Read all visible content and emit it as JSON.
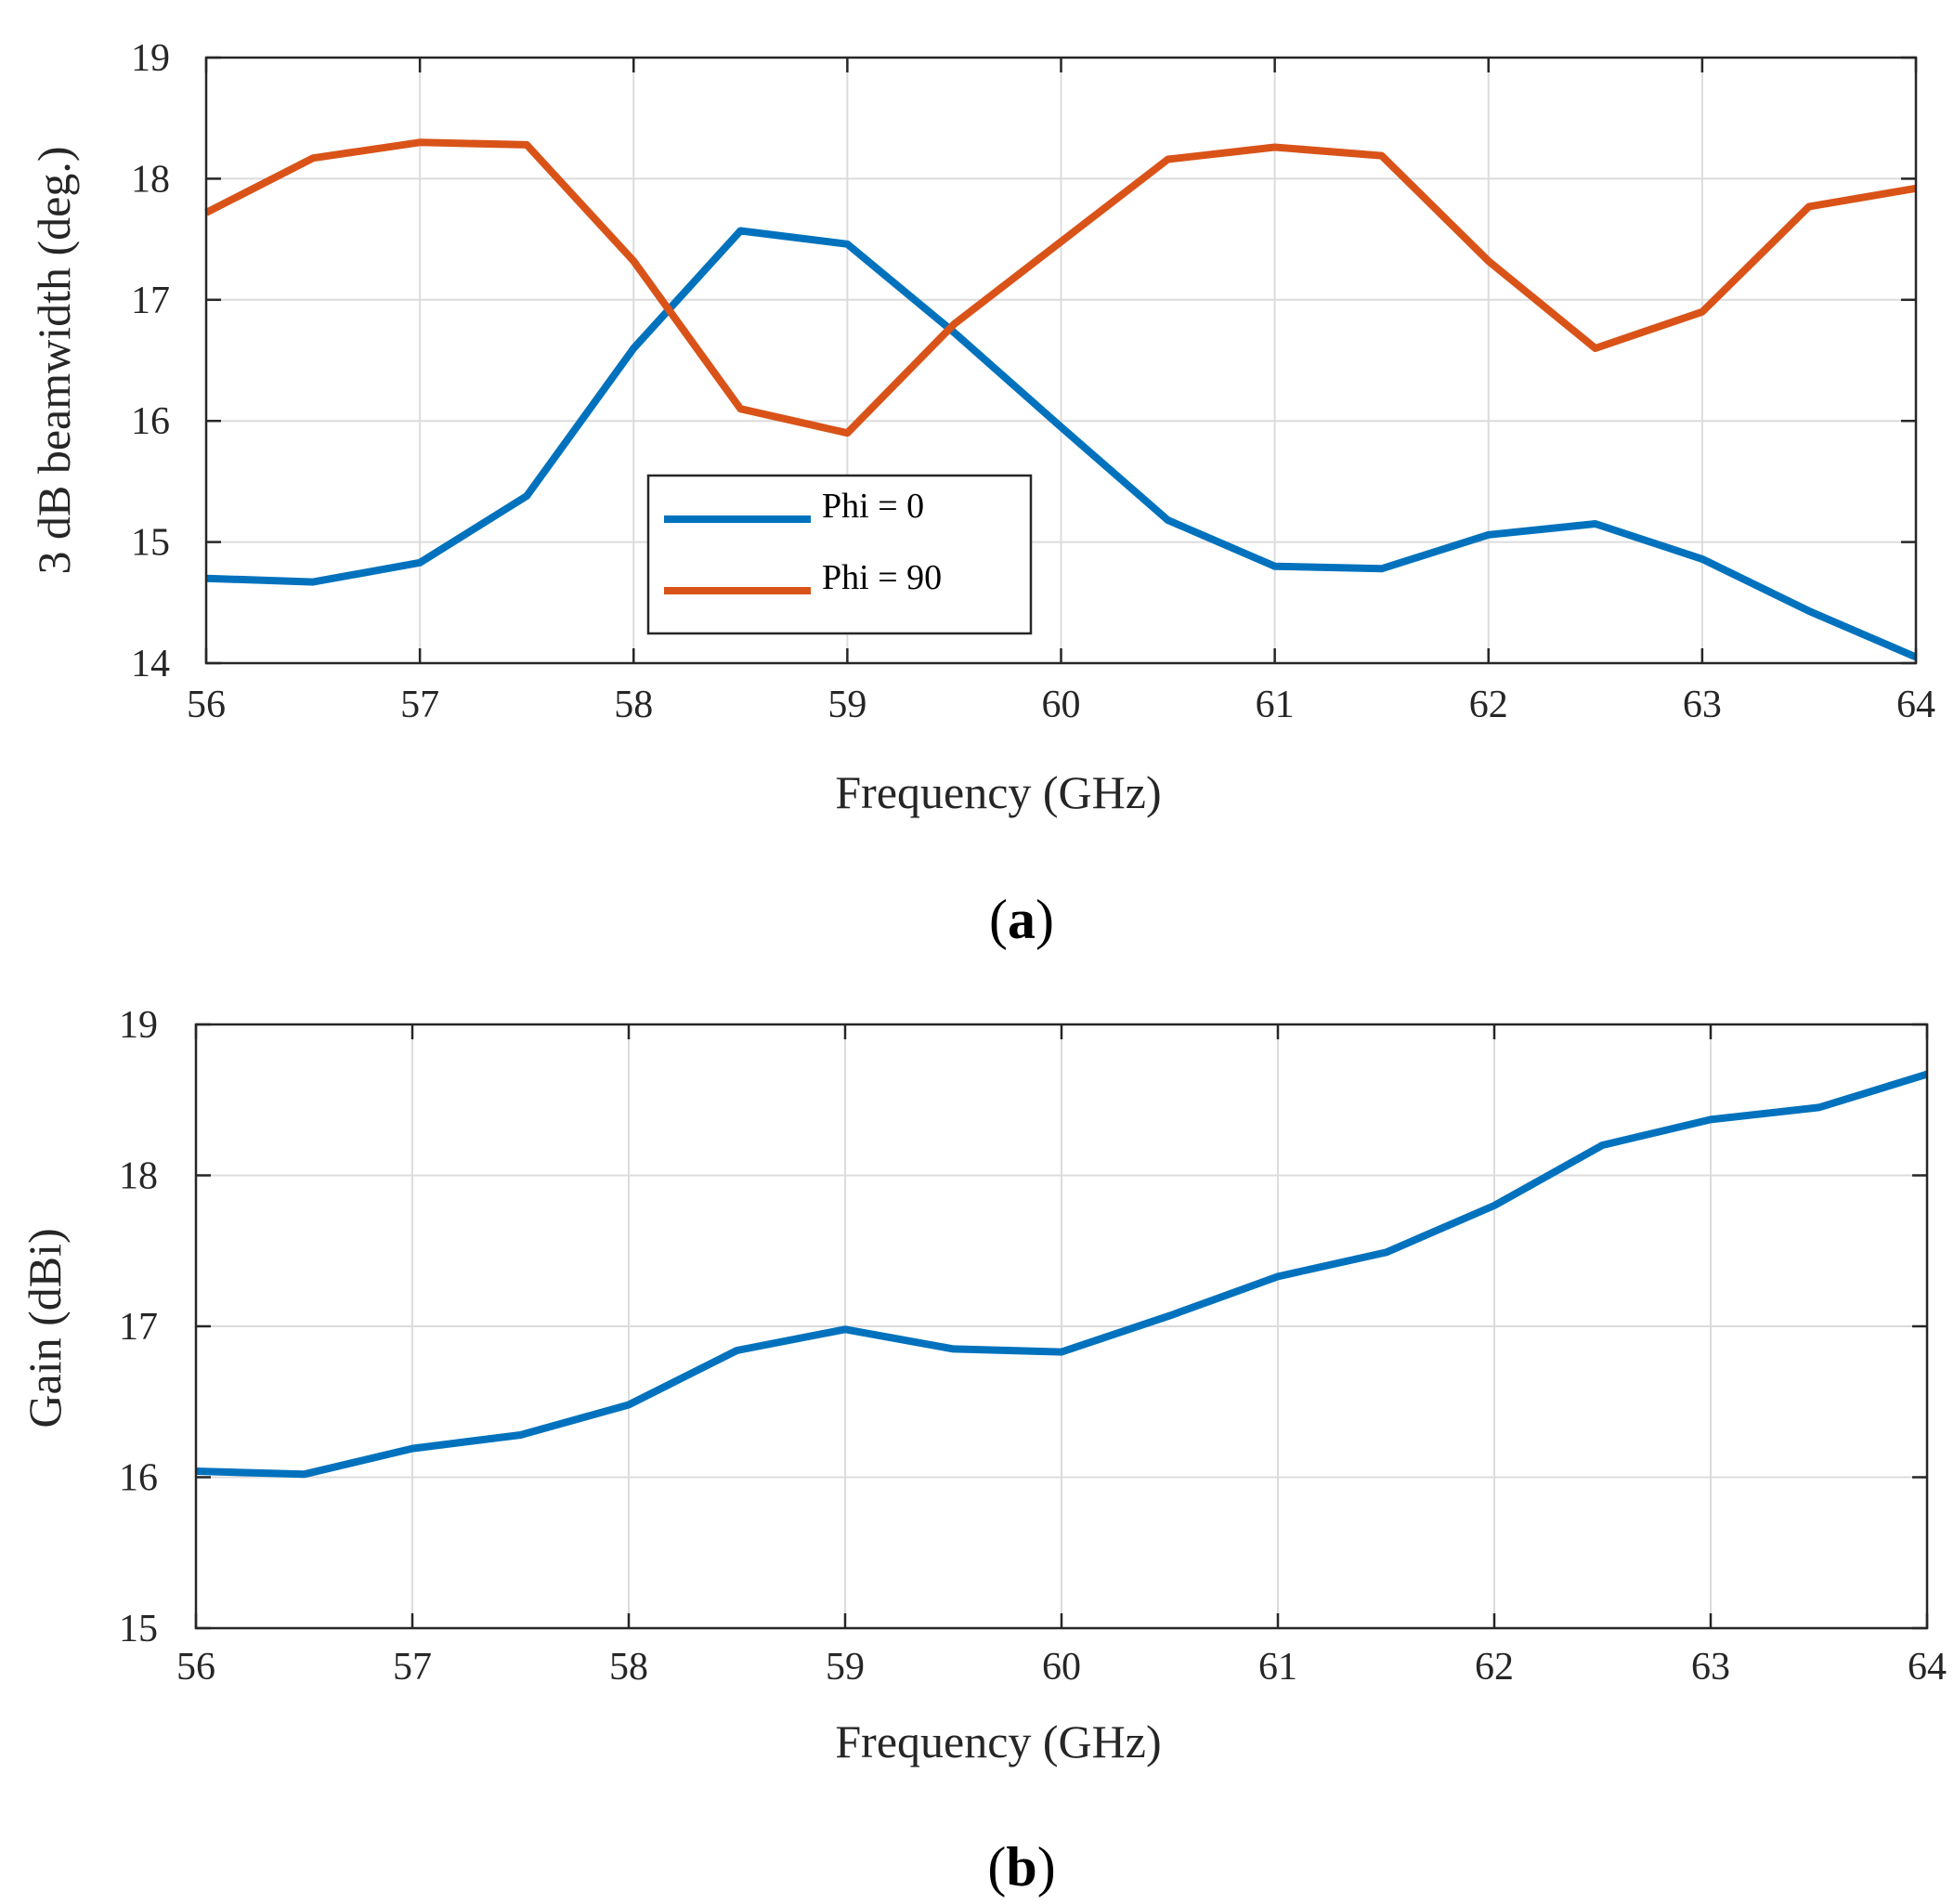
{
  "chart_data": [
    {
      "id": "a",
      "type": "line",
      "panel_label": "a",
      "xlabel": "Frequency (GHz)",
      "ylabel": "3 dB beamwidth (deg.)",
      "xlim": [
        56,
        64
      ],
      "ylim": [
        14,
        19
      ],
      "xticks": [
        56,
        57,
        58,
        59,
        60,
        61,
        62,
        63,
        64
      ],
      "yticks": [
        14,
        15,
        16,
        17,
        18,
        19
      ],
      "grid": true,
      "legend_position": "lower-center",
      "x": [
        56,
        56.5,
        57,
        57.5,
        58,
        58.5,
        59,
        59.5,
        60,
        60.5,
        61,
        61.5,
        62,
        62.5,
        63,
        63.5,
        64
      ],
      "series": [
        {
          "name": "Phi = 0",
          "color": "#0072bd",
          "values": [
            14.7,
            14.67,
            14.83,
            15.38,
            16.6,
            17.57,
            17.46,
            16.73,
            15.95,
            15.18,
            14.8,
            14.78,
            15.06,
            15.15,
            14.86,
            14.43,
            14.05
          ]
        },
        {
          "name": "Phi = 90",
          "color": "#d95319",
          "values": [
            17.72,
            18.17,
            18.3,
            18.28,
            17.32,
            16.1,
            15.9,
            16.8,
            17.48,
            18.16,
            18.26,
            18.19,
            17.32,
            16.6,
            16.9,
            17.77,
            17.92
          ]
        }
      ]
    },
    {
      "id": "b",
      "type": "line",
      "panel_label": "b",
      "xlabel": "Frequency (GHz)",
      "ylabel": "Gain (dBi)",
      "xlim": [
        56,
        64
      ],
      "ylim": [
        15,
        19
      ],
      "xticks": [
        56,
        57,
        58,
        59,
        60,
        61,
        62,
        63,
        64
      ],
      "yticks": [
        15,
        16,
        17,
        18,
        19
      ],
      "grid": true,
      "x": [
        56,
        56.5,
        57,
        57.5,
        58,
        58.5,
        59,
        59.5,
        60,
        60.5,
        61,
        61.5,
        62,
        62.5,
        63,
        63.5,
        64
      ],
      "series": [
        {
          "name": "Gain",
          "color": "#0072bd",
          "values": [
            16.04,
            16.02,
            16.19,
            16.28,
            16.48,
            16.84,
            16.98,
            16.85,
            16.83,
            17.07,
            17.33,
            17.49,
            17.8,
            18.2,
            18.37,
            18.45,
            18.67
          ]
        }
      ]
    }
  ]
}
